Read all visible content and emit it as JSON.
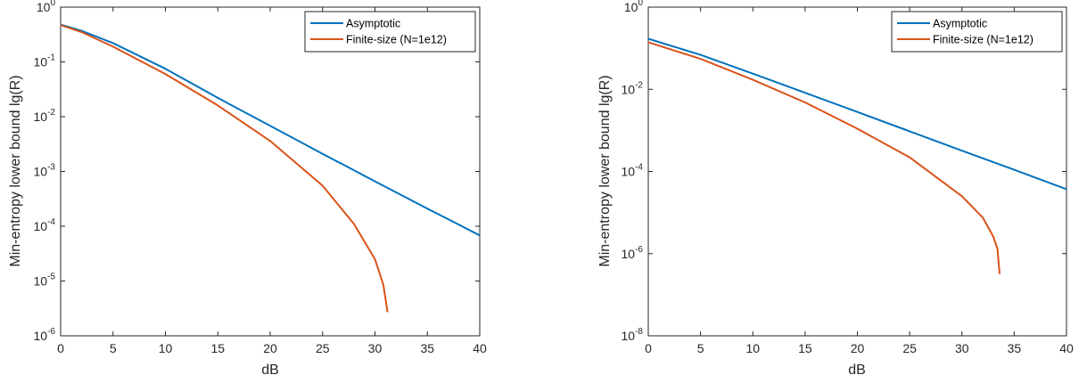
{
  "chart_data": [
    {
      "type": "line",
      "xlabel": "dB",
      "ylabel": "Min-entropy lower bound lg(R)",
      "xlim": [
        0,
        40
      ],
      "ylim": [
        1e-06,
        1
      ],
      "yscale": "log",
      "xticks": [
        "0",
        "5",
        "10",
        "15",
        "20",
        "25",
        "30",
        "35",
        "40"
      ],
      "yticks": [
        {
          "base": "10",
          "exp": "-6"
        },
        {
          "base": "10",
          "exp": "-5"
        },
        {
          "base": "10",
          "exp": "-4"
        },
        {
          "base": "10",
          "exp": "-3"
        },
        {
          "base": "10",
          "exp": "-2"
        },
        {
          "base": "10",
          "exp": "-1"
        },
        {
          "base": "10",
          "exp": "0"
        }
      ],
      "grid": false,
      "legend_position": "top-right",
      "series": [
        {
          "name": "Asymptotic",
          "color": "#0072BD",
          "x": [
            0,
            2,
            5,
            10,
            15,
            20,
            25,
            30,
            35,
            40
          ],
          "y": [
            0.48,
            0.37,
            0.22,
            0.075,
            0.022,
            0.0068,
            0.0021,
            0.00066,
            0.00021,
            6.8e-05
          ]
        },
        {
          "name": "Finite-size (N=1e12)",
          "color": "#D95319",
          "x": [
            0,
            2,
            5,
            10,
            15,
            20,
            25,
            28,
            30,
            30.8,
            31.2
          ],
          "y": [
            0.47,
            0.35,
            0.19,
            0.06,
            0.016,
            0.0036,
            0.00055,
            0.00011,
            2.5e-05,
            8.5e-06,
            2.7e-06
          ]
        }
      ]
    },
    {
      "type": "line",
      "xlabel": "dB",
      "ylabel": "Min-entropy lower bound lg(R)",
      "xlim": [
        0,
        40
      ],
      "ylim": [
        1e-08,
        1
      ],
      "yscale": "log",
      "xticks": [
        "0",
        "5",
        "10",
        "15",
        "20",
        "25",
        "30",
        "35",
        "40"
      ],
      "yticks": [
        {
          "base": "10",
          "exp": "-8"
        },
        {
          "base": "10",
          "exp": "-6"
        },
        {
          "base": "10",
          "exp": "-4"
        },
        {
          "base": "10",
          "exp": "-2"
        },
        {
          "base": "10",
          "exp": "0"
        }
      ],
      "grid": false,
      "legend_position": "top-right",
      "series": [
        {
          "name": "Asymptotic",
          "color": "#0072BD",
          "x": [
            0,
            5,
            10,
            15,
            20,
            25,
            30,
            35,
            40
          ],
          "y": [
            0.17,
            0.069,
            0.024,
            0.0082,
            0.0028,
            0.00095,
            0.00032,
            0.00011,
            3.7e-05
          ]
        },
        {
          "name": "Finite-size (N=1e12)",
          "color": "#D95319",
          "x": [
            0,
            5,
            10,
            15,
            20,
            25,
            30,
            32,
            33,
            33.4,
            33.6
          ],
          "y": [
            0.14,
            0.055,
            0.017,
            0.0048,
            0.0011,
            0.00022,
            2.5e-05,
            7.5e-06,
            2.6e-06,
            1.3e-06,
            3.2e-07
          ]
        }
      ]
    }
  ]
}
